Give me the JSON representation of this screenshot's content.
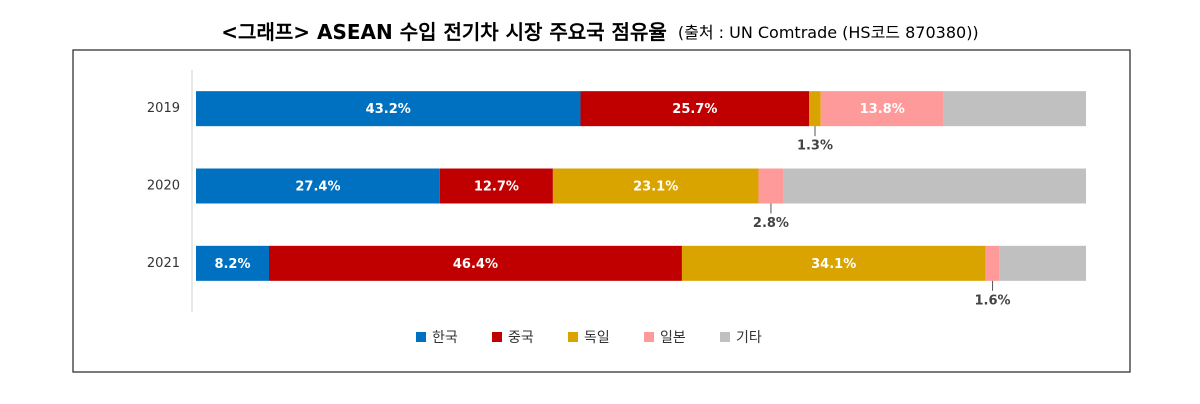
{
  "chart_data": {
    "type": "stacked-barh",
    "title": "<그래프> ASEAN 수입 전기차 시장 주요국 점유율",
    "source": "(출처 : UN Comtrade (HS코드 870380))",
    "categories": [
      "2019",
      "2020",
      "2021"
    ],
    "xlim": [
      0,
      100
    ],
    "legend": "bottom",
    "series": [
      {
        "name": "한국",
        "color": "#0070c0",
        "values": [
          43.2,
          27.4,
          8.2
        ],
        "value_labels": [
          "43.2%",
          "27.4%",
          "8.2%"
        ]
      },
      {
        "name": "중국",
        "color": "#c00000",
        "values": [
          25.7,
          12.7,
          46.4
        ],
        "value_labels": [
          "25.7%",
          "12.7%",
          "46.4%"
        ]
      },
      {
        "name": "독일",
        "color": "#d9a300",
        "values": [
          1.3,
          23.1,
          34.1
        ],
        "value_labels": [
          "1.3%",
          "23.1%",
          "34.1%"
        ]
      },
      {
        "name": "일본",
        "color": "#ff9a9a",
        "values": [
          13.8,
          2.8,
          1.6
        ],
        "value_labels": [
          "13.8%",
          "2.8%",
          "1.6%"
        ]
      },
      {
        "name": "기타",
        "color": "#c0c0c0",
        "values": [
          16.0,
          34.0,
          9.7
        ],
        "value_labels": [
          null,
          null,
          null
        ]
      }
    ]
  }
}
